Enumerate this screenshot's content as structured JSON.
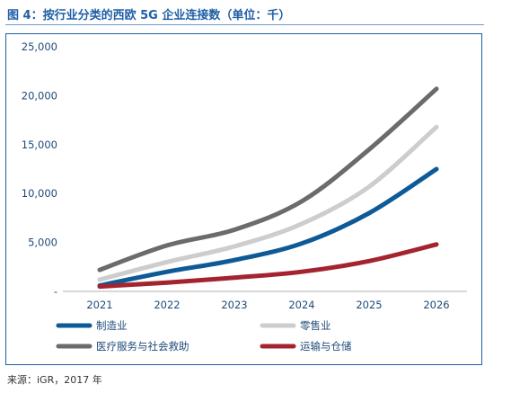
{
  "header": {
    "title": "图 4：按行业分类的西欧 5G 企业连接数（单位：千）"
  },
  "footer": {
    "source": "来源：iGR，2017 年"
  },
  "chart_data": {
    "type": "line",
    "title": "图 4：按行业分类的西欧 5G 企业连接数（单位：千）",
    "xlabel": "",
    "ylabel": "",
    "x": [
      2021,
      2022,
      2023,
      2024,
      2025,
      2026
    ],
    "x_labels": [
      "2021",
      "2022",
      "2023",
      "2024",
      "2025",
      "2026"
    ],
    "ylim": [
      0,
      25000
    ],
    "y_ticks": [
      0,
      5000,
      10000,
      15000,
      20000,
      25000
    ],
    "y_tick_labels": [
      "-",
      "5,000",
      "10,000",
      "15,000",
      "20,000",
      "25,000"
    ],
    "grid": false,
    "legend_position": "bottom",
    "series": [
      {
        "name": "制造业",
        "color": "#0e5a96",
        "values": [
          600,
          2000,
          3200,
          4900,
          8000,
          12500
        ]
      },
      {
        "name": "零售业",
        "color": "#cdcdcd",
        "values": [
          1200,
          3000,
          4600,
          6900,
          10700,
          16800
        ]
      },
      {
        "name": "医疗服务与社会救助",
        "color": "#6b6b6b",
        "values": [
          2200,
          4700,
          6300,
          9200,
          14500,
          20700
        ]
      },
      {
        "name": "运输与仓储",
        "color": "#a3242f",
        "values": [
          500,
          900,
          1400,
          2000,
          3100,
          4800
        ]
      }
    ]
  }
}
